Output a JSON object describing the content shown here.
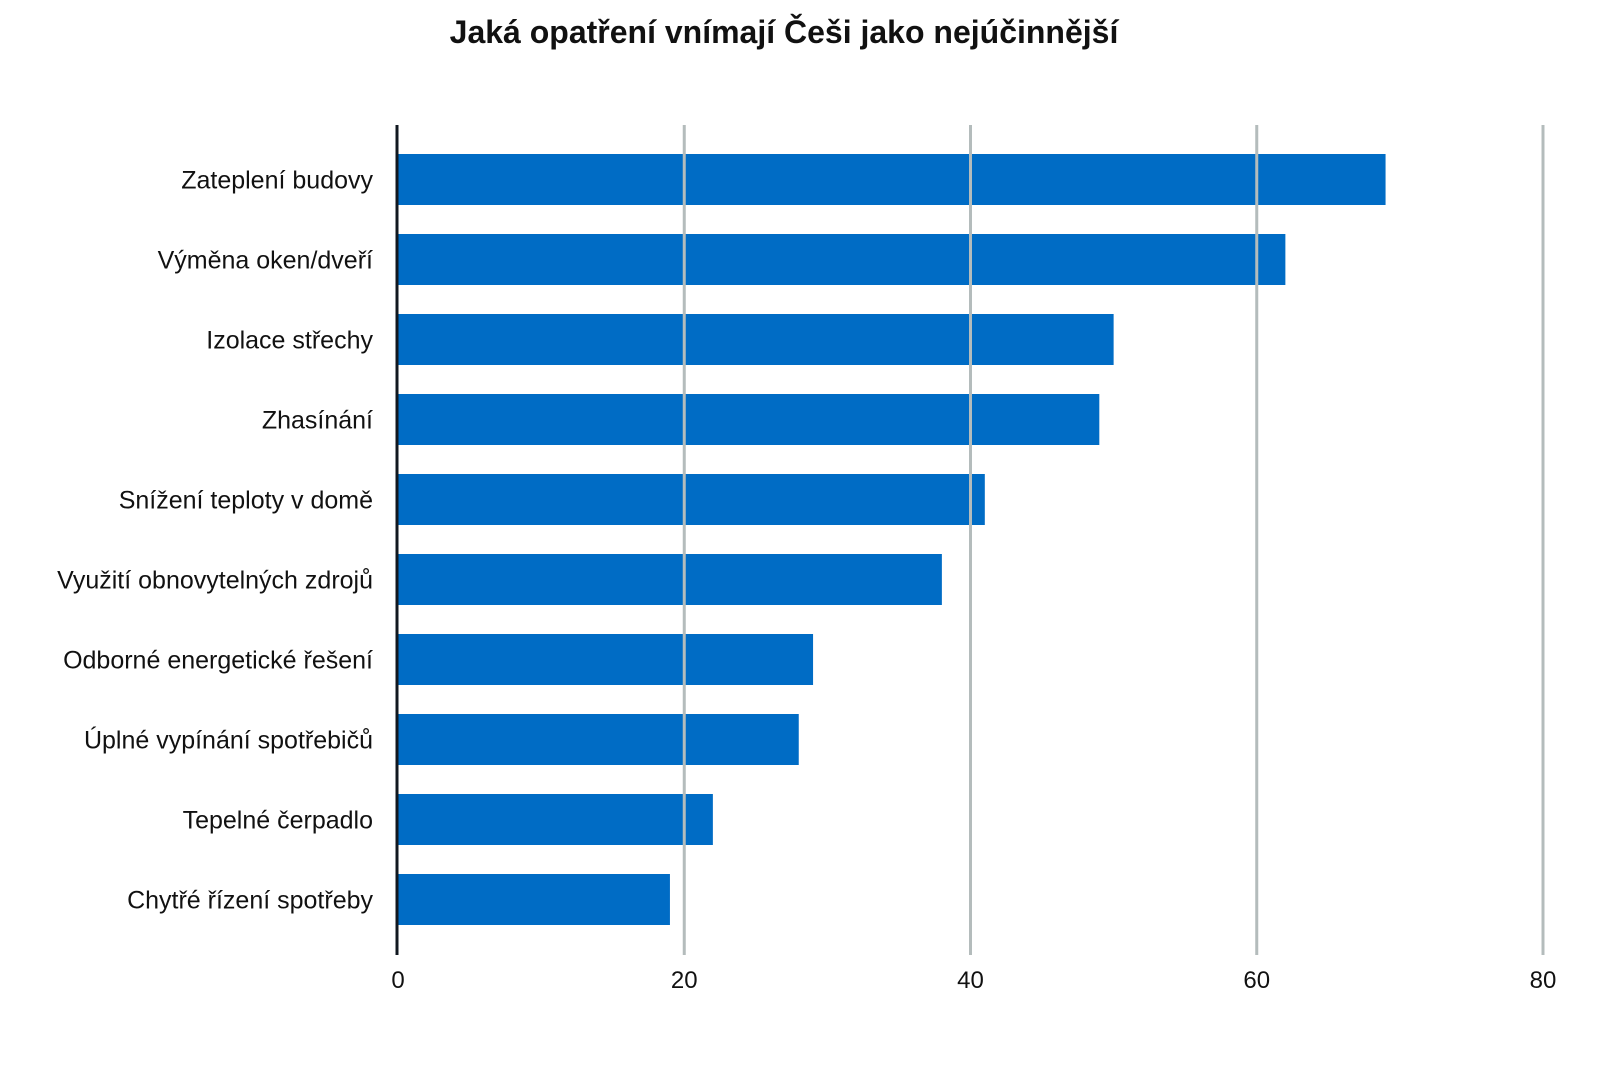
{
  "chart_data": {
    "type": "bar",
    "orientation": "horizontal",
    "title": "Jaká opatření vnímají Češi jako nejúčinnější",
    "xlabel": "",
    "ylabel": "",
    "categories": [
      "Zateplení budovy",
      "Výměna oken/dveří",
      "Izolace střechy",
      "Zhasínání",
      "Snížení teploty v domě",
      "Využití obnovytelných zdrojů",
      "Odborné energetické řešení",
      "Úplné vypínání spotřebičů",
      "Tepelné čerpadlo",
      "Chytřé řízení spotřeby"
    ],
    "values": [
      69,
      62,
      50,
      49,
      41,
      38,
      29,
      28,
      22,
      19
    ],
    "xlim": [
      0,
      80
    ],
    "xticks": [
      "0",
      "20",
      "40",
      "60",
      "80"
    ],
    "grid": true,
    "legend": "none",
    "colors": {
      "bar": "#006cc5",
      "grid": "#b4bcbc",
      "axis": "#111820"
    }
  }
}
